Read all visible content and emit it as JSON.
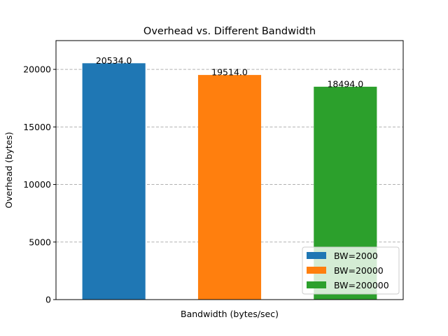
{
  "chart_data": {
    "type": "bar",
    "title": "Overhead vs. Different Bandwidth",
    "xlabel": "Bandwidth (bytes/sec)",
    "ylabel": "Overhead (bytes)",
    "ylim": [
      0,
      22500
    ],
    "yticks": [
      0,
      5000,
      10000,
      15000,
      20000
    ],
    "grid": "horizontal dashed",
    "legend_position": "bottom-right",
    "series": [
      {
        "name": "BW=2000",
        "value": 20534.0,
        "label": "20534.0",
        "color": "#1f77b4"
      },
      {
        "name": "BW=20000",
        "value": 19514.0,
        "label": "19514.0",
        "color": "#ff7f0e"
      },
      {
        "name": "BW=200000",
        "value": 18494.0,
        "label": "18494.0",
        "color": "#2ca02c"
      }
    ]
  }
}
